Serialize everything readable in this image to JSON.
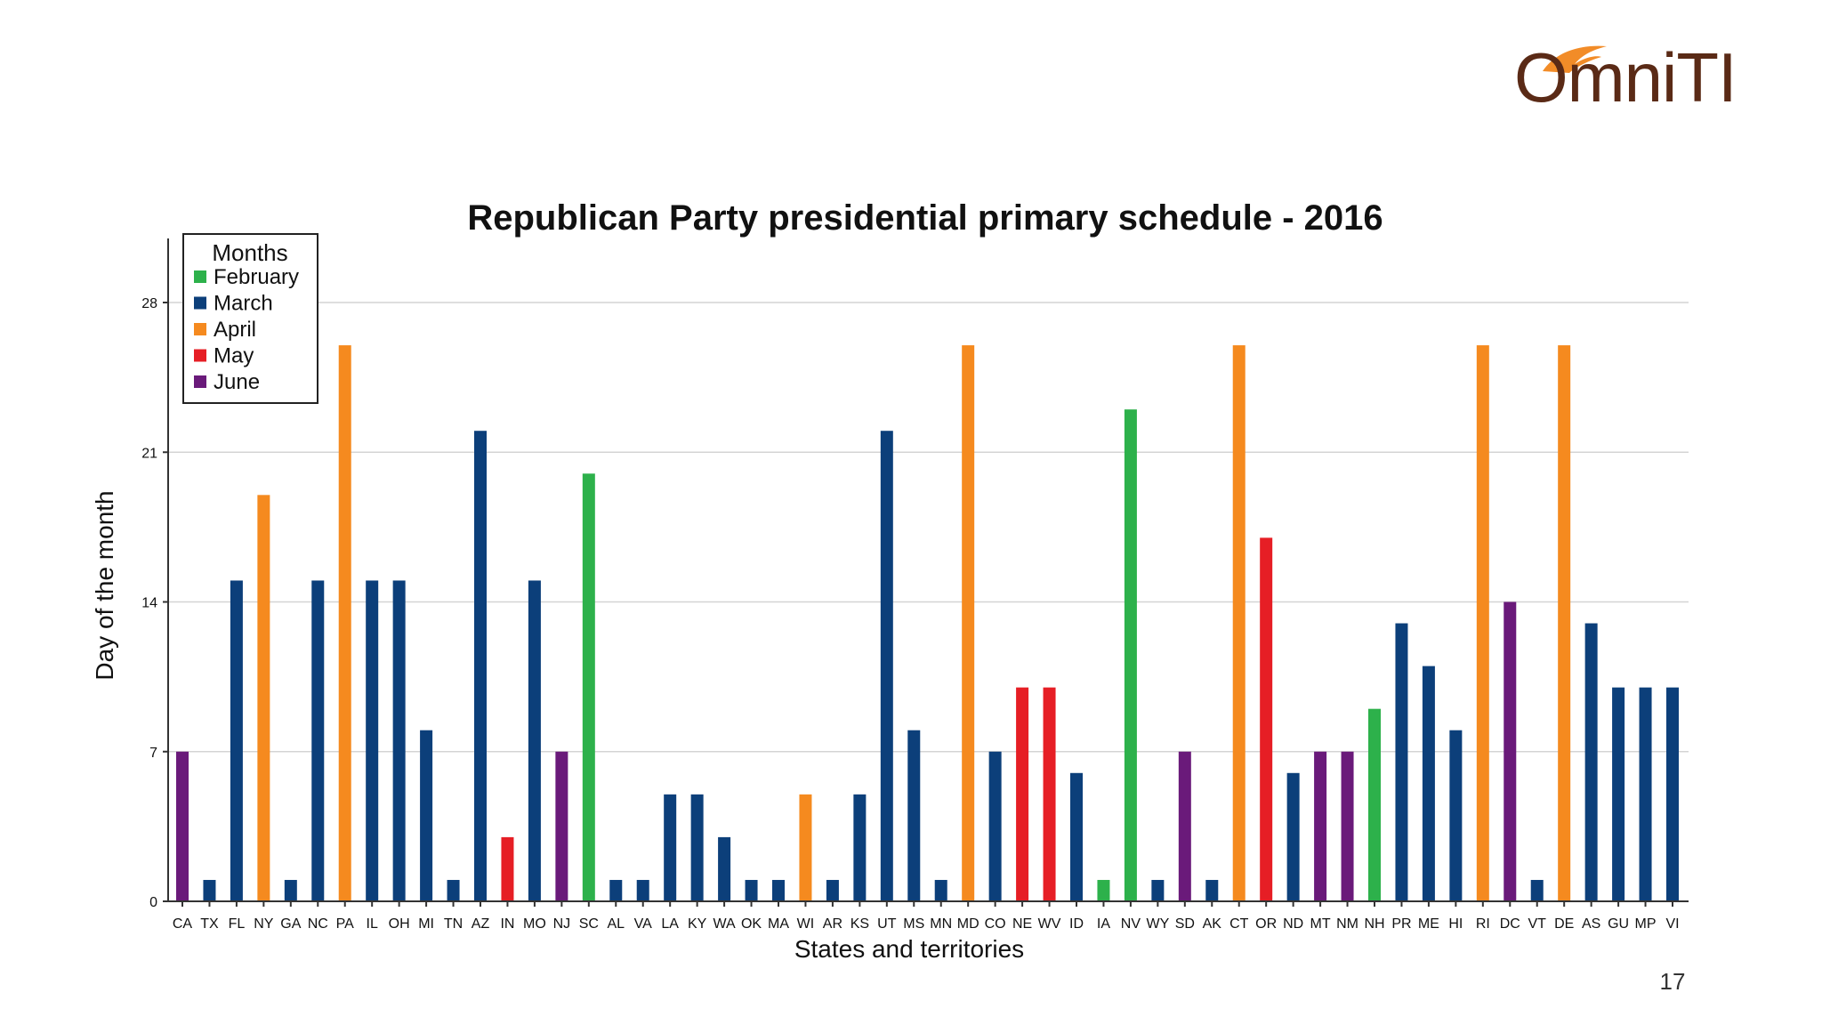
{
  "slide": {
    "logo_text": "OmniTI",
    "page_number": "17"
  },
  "chart_data": {
    "type": "bar",
    "title": "Republican Party presidential primary schedule - 2016",
    "xlabel": "States and territories",
    "ylabel": "Day of the month",
    "ylim": [
      0,
      28
    ],
    "yticks": [
      0,
      7,
      14,
      21,
      28
    ],
    "grid": true,
    "legend": {
      "title": "Months",
      "position": "top-left",
      "entries": [
        {
          "name": "February",
          "color": "#2db14b"
        },
        {
          "name": "March",
          "color": "#0c3f7a"
        },
        {
          "name": "April",
          "color": "#f58a1f"
        },
        {
          "name": "May",
          "color": "#e61e25"
        },
        {
          "name": "June",
          "color": "#6a1a7a"
        }
      ]
    },
    "categories": [
      "CA",
      "TX",
      "FL",
      "NY",
      "GA",
      "NC",
      "PA",
      "IL",
      "OH",
      "MI",
      "TN",
      "AZ",
      "IN",
      "MO",
      "NJ",
      "SC",
      "AL",
      "VA",
      "LA",
      "KY",
      "WA",
      "OK",
      "MA",
      "WI",
      "AR",
      "KS",
      "UT",
      "MS",
      "MN",
      "MD",
      "CO",
      "NE",
      "WV",
      "ID",
      "IA",
      "NV",
      "WY",
      "SD",
      "AK",
      "CT",
      "OR",
      "ND",
      "MT",
      "NM",
      "NH",
      "PR",
      "ME",
      "HI",
      "RI",
      "DC",
      "VT",
      "DE",
      "AS",
      "GU",
      "MP",
      "VI"
    ],
    "values": [
      7,
      1,
      15,
      19,
      1,
      15,
      26,
      15,
      15,
      8,
      1,
      22,
      3,
      15,
      7,
      20,
      1,
      1,
      5,
      5,
      3,
      1,
      1,
      5,
      1,
      5,
      22,
      8,
      1,
      26,
      7,
      10,
      10,
      6,
      1,
      23,
      1,
      7,
      1,
      26,
      17,
      6,
      7,
      7,
      9,
      13,
      11,
      8,
      26,
      14,
      1,
      26,
      13,
      10,
      10,
      10
    ],
    "months": [
      "June",
      "March",
      "March",
      "April",
      "March",
      "March",
      "April",
      "March",
      "March",
      "March",
      "March",
      "March",
      "May",
      "March",
      "June",
      "February",
      "March",
      "March",
      "March",
      "March",
      "March",
      "March",
      "March",
      "April",
      "March",
      "March",
      "March",
      "March",
      "March",
      "April",
      "March",
      "May",
      "May",
      "March",
      "February",
      "February",
      "March",
      "June",
      "March",
      "April",
      "May",
      "March",
      "June",
      "June",
      "February",
      "March",
      "March",
      "March",
      "April",
      "June",
      "March",
      "April",
      "March",
      "March",
      "March",
      "March"
    ]
  }
}
